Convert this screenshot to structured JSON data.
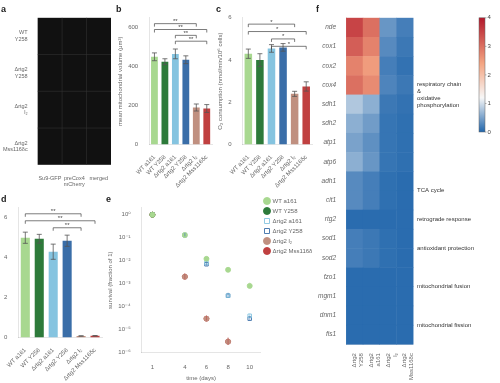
{
  "chart_data": [
    {
      "type": "image",
      "title": "a",
      "categories": [
        "Su9-GFP",
        "preCox4\nmCherry",
        "merged"
      ],
      "y_categories": [
        "WT\nY258",
        "Δrtg2\nY258",
        "Δrtg2\nl₂",
        "Δrtg2\nMss116δc"
      ],
      "grid": false
    },
    {
      "type": "bar",
      "title": "b",
      "categories": [
        "WT a161",
        "WT Y258",
        "Δrtg2 a161",
        "Δrtg2 Y258",
        "Δrtg2 l₂",
        "Δrtg2 Mss116δc"
      ],
      "values": [
        450,
        425,
        465,
        435,
        190,
        185
      ],
      "errors": [
        20,
        15,
        25,
        20,
        18,
        20
      ],
      "colors": [
        "#a8d890",
        "#2d7a3a",
        "#85c4e0",
        "#3a6ea8",
        "#c09080",
        "#c04040"
      ],
      "y_label": "mean mitochondrial volume (μm³)",
      "ylim": [
        0,
        650
      ],
      "yticks": [
        0,
        200,
        400,
        600
      ],
      "grid": false,
      "annotations": [
        {
          "from": "WT a161",
          "to": "Δrtg2 l₂",
          "y": 620,
          "text": "**"
        },
        {
          "from": "WT a161",
          "to": "Δrtg2 Mss116δc",
          "y": 590,
          "text": "**"
        },
        {
          "from": "Δrtg2 a161",
          "to": "Δrtg2 l₂",
          "y": 560,
          "text": "**"
        },
        {
          "from": "Δrtg2 a161",
          "to": "Δrtg2 Mss116δc",
          "y": 530,
          "text": "**"
        }
      ]
    },
    {
      "type": "bar",
      "title": "c",
      "categories": [
        "WT a161",
        "WT Y258",
        "Δrtg2 a161",
        "Δrtg2 Y258",
        "Δrtg2 l₂",
        "Δrtg2 Mss116δc"
      ],
      "values": [
        4.3,
        4.0,
        4.55,
        4.6,
        2.4,
        2.75
      ],
      "errors": [
        0.22,
        0.3,
        0.18,
        0.18,
        0.12,
        0.22
      ],
      "colors": [
        "#a8d890",
        "#2d7a3a",
        "#85c4e0",
        "#3a6ea8",
        "#c09080",
        "#c04040"
      ],
      "y_label": "O₂ consumption (nmol/min/10⁶ cells)",
      "ylim": [
        0,
        6
      ],
      "yticks": [
        0,
        2,
        4,
        6
      ],
      "grid": false,
      "annotations": [
        {
          "from": "WT a161",
          "to": "Δrtg2 l₂",
          "y": 5.7,
          "text": "*"
        },
        {
          "from": "WT a161",
          "to": "Δrtg2 Mss116δc",
          "y": 5.35,
          "text": "*"
        },
        {
          "from": "Δrtg2 a161",
          "to": "Δrtg2 l₂",
          "y": 5.0,
          "text": "*"
        },
        {
          "from": "Δrtg2 a161",
          "to": "Δrtg2 Mss116δc",
          "y": 4.65,
          "text": "*"
        }
      ]
    },
    {
      "type": "bar",
      "title": "d",
      "categories": [
        "WT a161",
        "WT Y258",
        "Δrtg2 a161",
        "Δrtg2 Y258",
        "Δrtg2 l₂",
        "Δrtg2 Mss116δc"
      ],
      "values": [
        5.0,
        4.95,
        4.3,
        4.85,
        0.08,
        0.09
      ],
      "errors": [
        0.28,
        0.22,
        0.38,
        0.28,
        0.008,
        0.012
      ],
      "colors": [
        "#a8d890",
        "#2d7a3a",
        "#85c4e0",
        "#3a6ea8",
        "#c09080",
        "#c04040"
      ],
      "ylim": [
        0,
        6.5
      ],
      "yticks": [
        0,
        2,
        4,
        6
      ],
      "grid": false,
      "annotations": [
        {
          "from": "WT a161",
          "to": "Δrtg2 l₂",
          "y": 6.2,
          "text": "**"
        },
        {
          "from": "WT a161",
          "to": "Δrtg2 Mss116δc",
          "y": 5.85,
          "text": "**"
        },
        {
          "from": "Δrtg2 a161",
          "to": "Δrtg2 l₂",
          "y": 5.5,
          "text": "**"
        }
      ]
    },
    {
      "type": "scatter",
      "title": "e",
      "log": "y",
      "x_label": "time (days)",
      "y_label": "survival (fraction of 1)",
      "xlim": [
        0,
        11
      ],
      "xticks": [
        1,
        4,
        6,
        8,
        10
      ],
      "ylim": [
        1e-06,
        2.0
      ],
      "yticks": [
        {
          "value": 1e-06,
          "label": "10⁻⁶"
        },
        {
          "value": 1e-05,
          "label": "10⁻⁵"
        },
        {
          "value": 0.0001,
          "label": "10⁻⁴"
        },
        {
          "value": 0.001,
          "label": "10⁻³"
        },
        {
          "value": 0.01,
          "label": "10⁻²"
        },
        {
          "value": 0.1,
          "label": "10⁻¹"
        },
        {
          "value": 1,
          "label": "10⁰"
        }
      ],
      "grid": false,
      "legend": "right",
      "series": [
        {
          "name": "WT a161",
          "color": "#a8d890",
          "marker": "circle",
          "x": [
            1,
            4,
            6,
            8,
            10
          ],
          "values": [
            1.0,
            0.13,
            0.012,
            0.004,
            0.0008
          ],
          "errors_minus": [
            0.0,
            0.015,
            0.0015,
            0.0005,
            0.00015
          ],
          "errors_plus": [
            0.0,
            0.03,
            0.003,
            0.001,
            0.0003
          ]
        },
        {
          "name": "WT Y258",
          "color": "#2d7a3a",
          "marker": "circle",
          "x": [
            1
          ],
          "values": [
            1.0
          ],
          "errors_minus": [
            0.0
          ],
          "errors_plus": [
            0.0
          ]
        },
        {
          "name": "Δrtg2 a161",
          "color": "#85c4e0",
          "marker": "open-square",
          "x": [
            1,
            4,
            6,
            8,
            10
          ],
          "values": [
            1.0,
            0.13,
            0.008,
            0.0003,
            4e-05
          ],
          "errors_minus": [
            0.0,
            0.015,
            0.001,
            5e-05,
            5e-06
          ],
          "errors_plus": [
            0.0,
            0.03,
            0.002,
            0.0001,
            1e-05
          ]
        },
        {
          "name": "Δrtg2 Y258",
          "color": "#3a6ea8",
          "marker": "open-square",
          "x": [
            1,
            4,
            6,
            8,
            10
          ],
          "values": [
            1.0,
            0.13,
            0.007,
            0.0003,
            3e-05
          ],
          "errors_minus": [
            0.0,
            0.015,
            0.001,
            5e-05,
            5e-06
          ],
          "errors_plus": [
            0.0,
            0.03,
            0.002,
            0.0001,
            1e-05
          ]
        },
        {
          "name": "Δrtg2 l₂",
          "color": "#c09080",
          "marker": "circle",
          "x": [
            1,
            4,
            6,
            8
          ],
          "values": [
            1.0,
            0.002,
            3e-05,
            3e-06
          ],
          "errors_minus": [
            0.0,
            0.0004,
            5e-06,
            7.5e-07
          ],
          "errors_plus": [
            0.0,
            0.0008,
            1e-05,
            1.5e-06
          ]
        },
        {
          "name": "Δrtg2 Mss116δc",
          "color": "#c04040",
          "marker": "circle",
          "x": [
            1,
            4,
            6,
            8
          ],
          "values": [
            1.0,
            0.002,
            3e-05,
            3e-06
          ],
          "errors_minus": [
            0.0,
            0.0004,
            5e-06,
            7.5e-07
          ],
          "errors_plus": [
            0.0,
            0.0008,
            1e-05,
            1.5e-06
          ]
        }
      ]
    },
    {
      "type": "heatmap",
      "title": "f",
      "categories": [
        "Δrtg2\nY258",
        "Δrtg2\na161",
        "Δrtg2\nl₂",
        "Δrtg2\nMss116δc"
      ],
      "y_categories": [
        "nde",
        "cox1",
        "cox2",
        "cox4",
        "sdh1",
        "sdh2",
        "atp1",
        "atp6",
        "adh1",
        "cit1",
        "rtg2",
        "sod1",
        "sod2",
        "fzo1",
        "mgm1",
        "dnm1",
        "fis1"
      ],
      "values": [
        [
          3.5,
          3.0,
          0.4,
          0.2
        ],
        [
          3.2,
          2.8,
          0.3,
          0.15
        ],
        [
          2.8,
          2.5,
          0.2,
          0.1
        ],
        [
          3.0,
          2.7,
          0.25,
          0.15
        ],
        [
          0.8,
          0.6,
          0.15,
          0.1
        ],
        [
          0.6,
          0.45,
          0.12,
          0.08
        ],
        [
          0.5,
          0.35,
          0.12,
          0.08
        ],
        [
          0.6,
          0.4,
          0.12,
          0.08
        ],
        [
          0.3,
          0.2,
          0.08,
          0.05
        ],
        [
          0.3,
          0.2,
          0.08,
          0.05
        ],
        [
          0.05,
          0.05,
          0.05,
          0.05
        ],
        [
          0.2,
          0.15,
          0.08,
          0.05
        ],
        [
          0.2,
          0.15,
          0.08,
          0.05
        ],
        [
          0.05,
          0.05,
          0.05,
          0.05
        ],
        [
          0.05,
          0.05,
          0.05,
          0.05
        ],
        [
          0.05,
          0.05,
          0.05,
          0.05
        ],
        [
          0.05,
          0.05,
          0.05,
          0.05
        ]
      ],
      "color_range": [
        0,
        4
      ],
      "color_ticks": [
        0,
        1,
        2,
        3,
        4
      ],
      "grid": false,
      "annotations": [
        {
          "from": "nde",
          "to": "atp6",
          "text": "respiratory chain\n&\noxidative\nphosphorylation"
        },
        {
          "from": "adh1",
          "to": "cit1",
          "text": "TCA cycle"
        },
        {
          "from": "rtg2",
          "to": "rtg2",
          "text": "retrograde response"
        },
        {
          "from": "sod1",
          "to": "sod2",
          "text": "antioxidant protection"
        },
        {
          "from": "fzo1",
          "to": "mgm1",
          "text": "mitochondrial fusion"
        },
        {
          "from": "dnm1",
          "to": "fis1",
          "text": "mitochondrial fission"
        }
      ]
    }
  ]
}
